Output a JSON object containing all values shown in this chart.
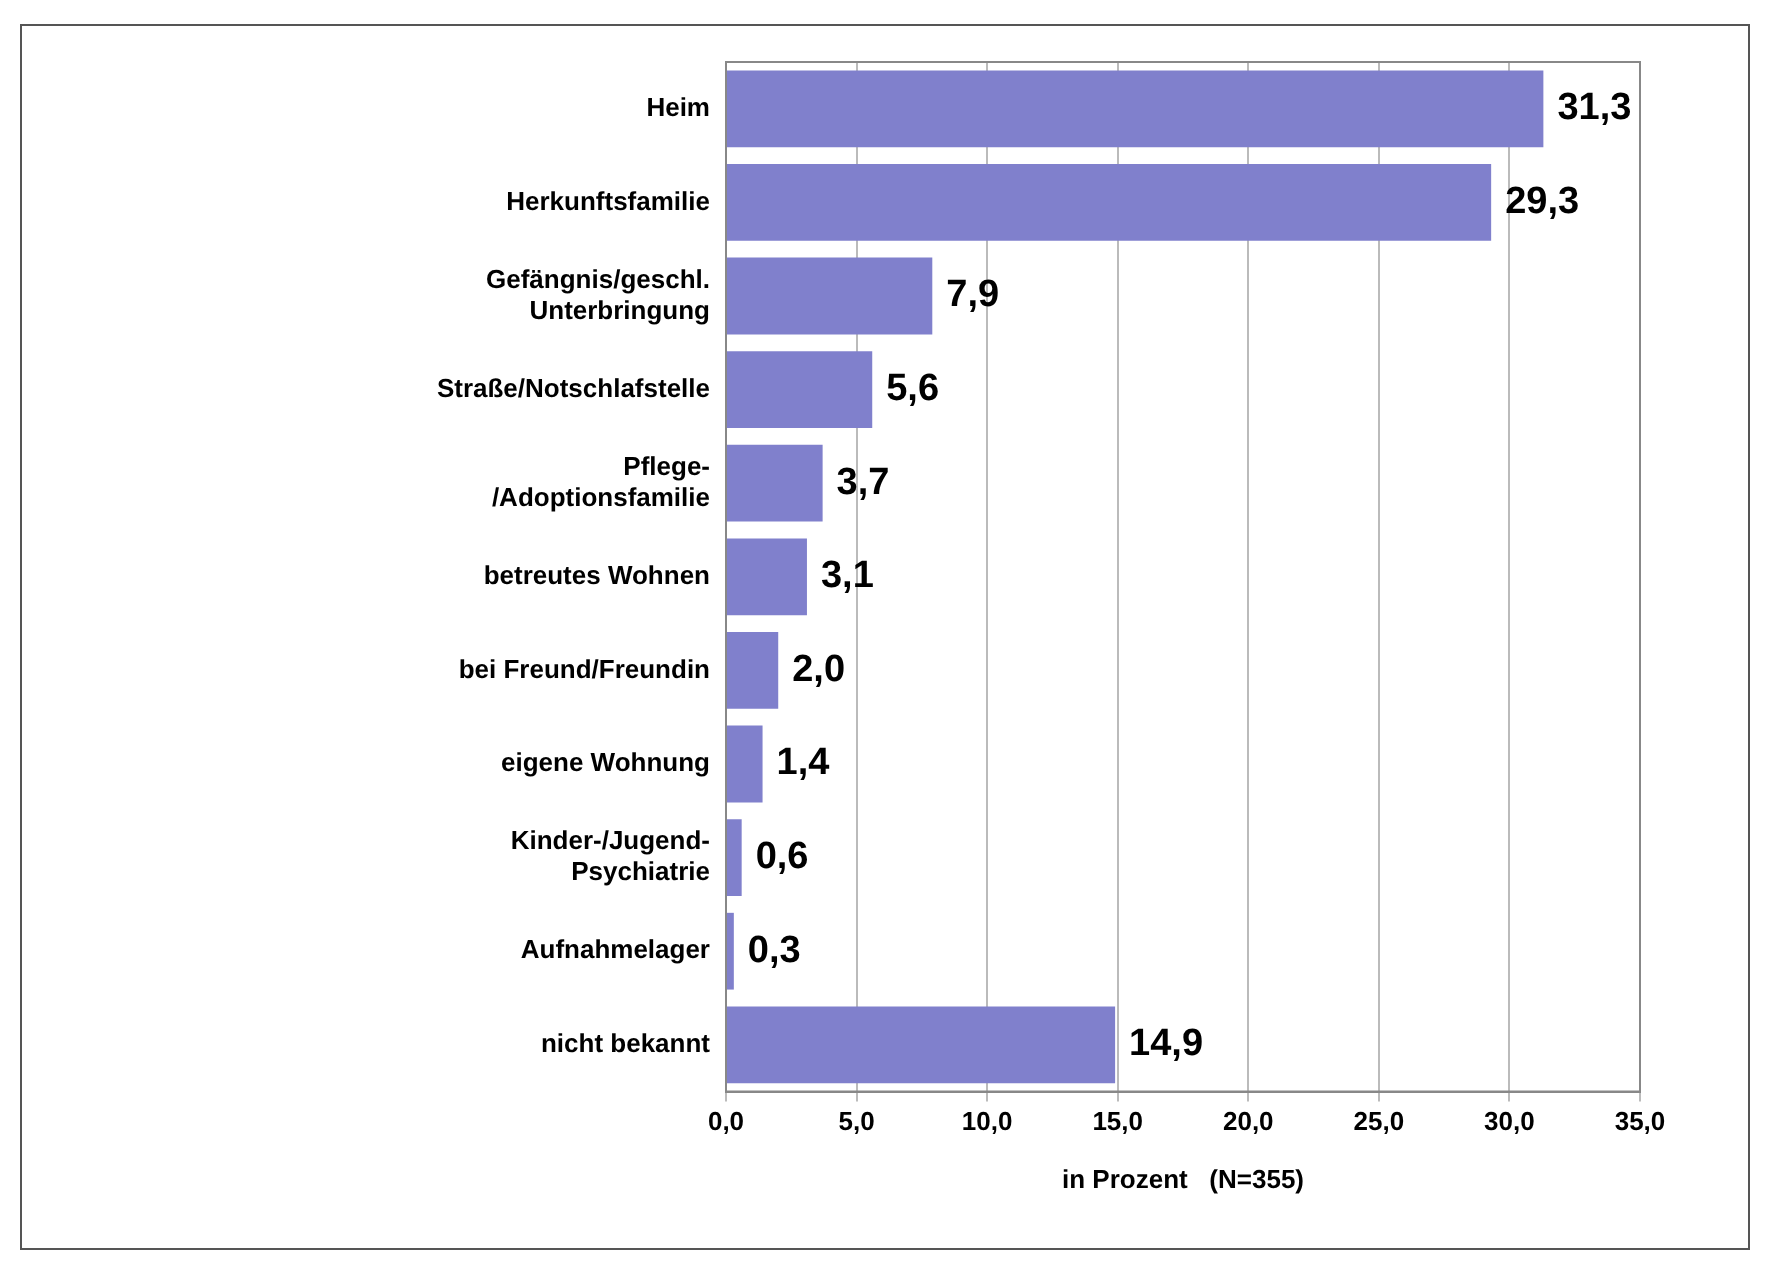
{
  "chart_data": {
    "type": "bar",
    "orientation": "horizontal",
    "xlabel": "in Prozent   (N=355)",
    "categories": [
      "Heim",
      "Herkunftsfamilie",
      "Gefängnis/geschl.\nUnterbringung",
      "Straße/Notschlafstelle",
      "Pflege-\n/Adoptionsfamilie",
      "betreutes Wohnen",
      "bei Freund/Freundin",
      "eigene Wohnung",
      "Kinder-/Jugend-\nPsychiatrie",
      "Aufnahmelager",
      "nicht bekannt"
    ],
    "values": [
      31.3,
      29.3,
      7.9,
      5.6,
      3.7,
      3.1,
      2.0,
      1.4,
      0.6,
      0.3,
      14.9
    ],
    "value_labels": [
      "31,3",
      "29,3",
      "7,9",
      "5,6",
      "3,7",
      "3,1",
      "2,0",
      "1,4",
      "0,6",
      "0,3",
      "14,9"
    ],
    "color": "#8080cc",
    "xlim": [
      0,
      35
    ],
    "xticks": [
      {
        "value": 0,
        "label": "0,0"
      },
      {
        "value": 5,
        "label": "5,0"
      },
      {
        "value": 10,
        "label": "10,0"
      },
      {
        "value": 15,
        "label": "15,0"
      },
      {
        "value": 20,
        "label": "20,0"
      },
      {
        "value": 25,
        "label": "25,0"
      },
      {
        "value": 30,
        "label": "30,0"
      },
      {
        "value": 35,
        "label": "35,0"
      }
    ],
    "grid": "x"
  }
}
